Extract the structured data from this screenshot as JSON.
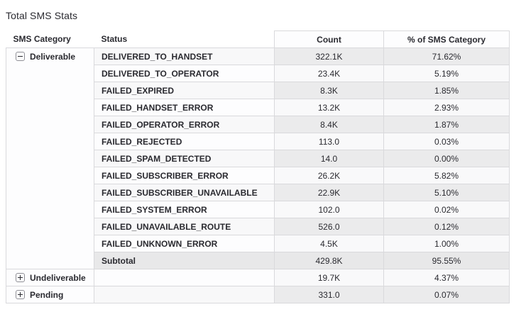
{
  "title": "Total SMS Stats",
  "table": {
    "columns": {
      "category": "SMS Category",
      "status": "Status",
      "count": "Count",
      "pct": "% of SMS Category"
    },
    "groups": [
      {
        "category": "Deliverable",
        "state": "expanded",
        "toggle_icon": "collapse-minus-icon",
        "rows": [
          {
            "status": "DELIVERED_TO_HANDSET",
            "count": "322.1K",
            "pct": "71.62%"
          },
          {
            "status": "DELIVERED_TO_OPERATOR",
            "count": "23.4K",
            "pct": "5.19%"
          },
          {
            "status": "FAILED_EXPIRED",
            "count": "8.3K",
            "pct": "1.85%"
          },
          {
            "status": "FAILED_HANDSET_ERROR",
            "count": "13.2K",
            "pct": "2.93%"
          },
          {
            "status": "FAILED_OPERATOR_ERROR",
            "count": "8.4K",
            "pct": "1.87%"
          },
          {
            "status": "FAILED_REJECTED",
            "count": "113.0",
            "pct": "0.03%"
          },
          {
            "status": "FAILED_SPAM_DETECTED",
            "count": "14.0",
            "pct": "0.00%"
          },
          {
            "status": "FAILED_SUBSCRIBER_ERROR",
            "count": "26.2K",
            "pct": "5.82%"
          },
          {
            "status": "FAILED_SUBSCRIBER_UNAVAILABLE",
            "count": "22.9K",
            "pct": "5.10%"
          },
          {
            "status": "FAILED_SYSTEM_ERROR",
            "count": "102.0",
            "pct": "0.02%"
          },
          {
            "status": "FAILED_UNAVAILABLE_ROUTE",
            "count": "526.0",
            "pct": "0.12%"
          },
          {
            "status": "FAILED_UNKNOWN_ERROR",
            "count": "4.5K",
            "pct": "1.00%"
          }
        ],
        "subtotal": {
          "label": "Subtotal",
          "count": "429.8K",
          "pct": "95.55%"
        }
      },
      {
        "category": "Undeliverable",
        "state": "collapsed",
        "toggle_icon": "expand-plus-icon",
        "rows": [],
        "total": {
          "count": "19.7K",
          "pct": "4.37%"
        }
      },
      {
        "category": "Pending",
        "state": "collapsed",
        "toggle_icon": "expand-plus-icon",
        "rows": [],
        "total": {
          "count": "331.0",
          "pct": "0.07%"
        }
      }
    ]
  },
  "colors": {
    "text": "#2a2a30",
    "border": "#d9d9dc",
    "stripe_metric": "#ebebec",
    "subtotal_bg": "#e8e8e9",
    "toggle_border": "#8f8f96"
  }
}
